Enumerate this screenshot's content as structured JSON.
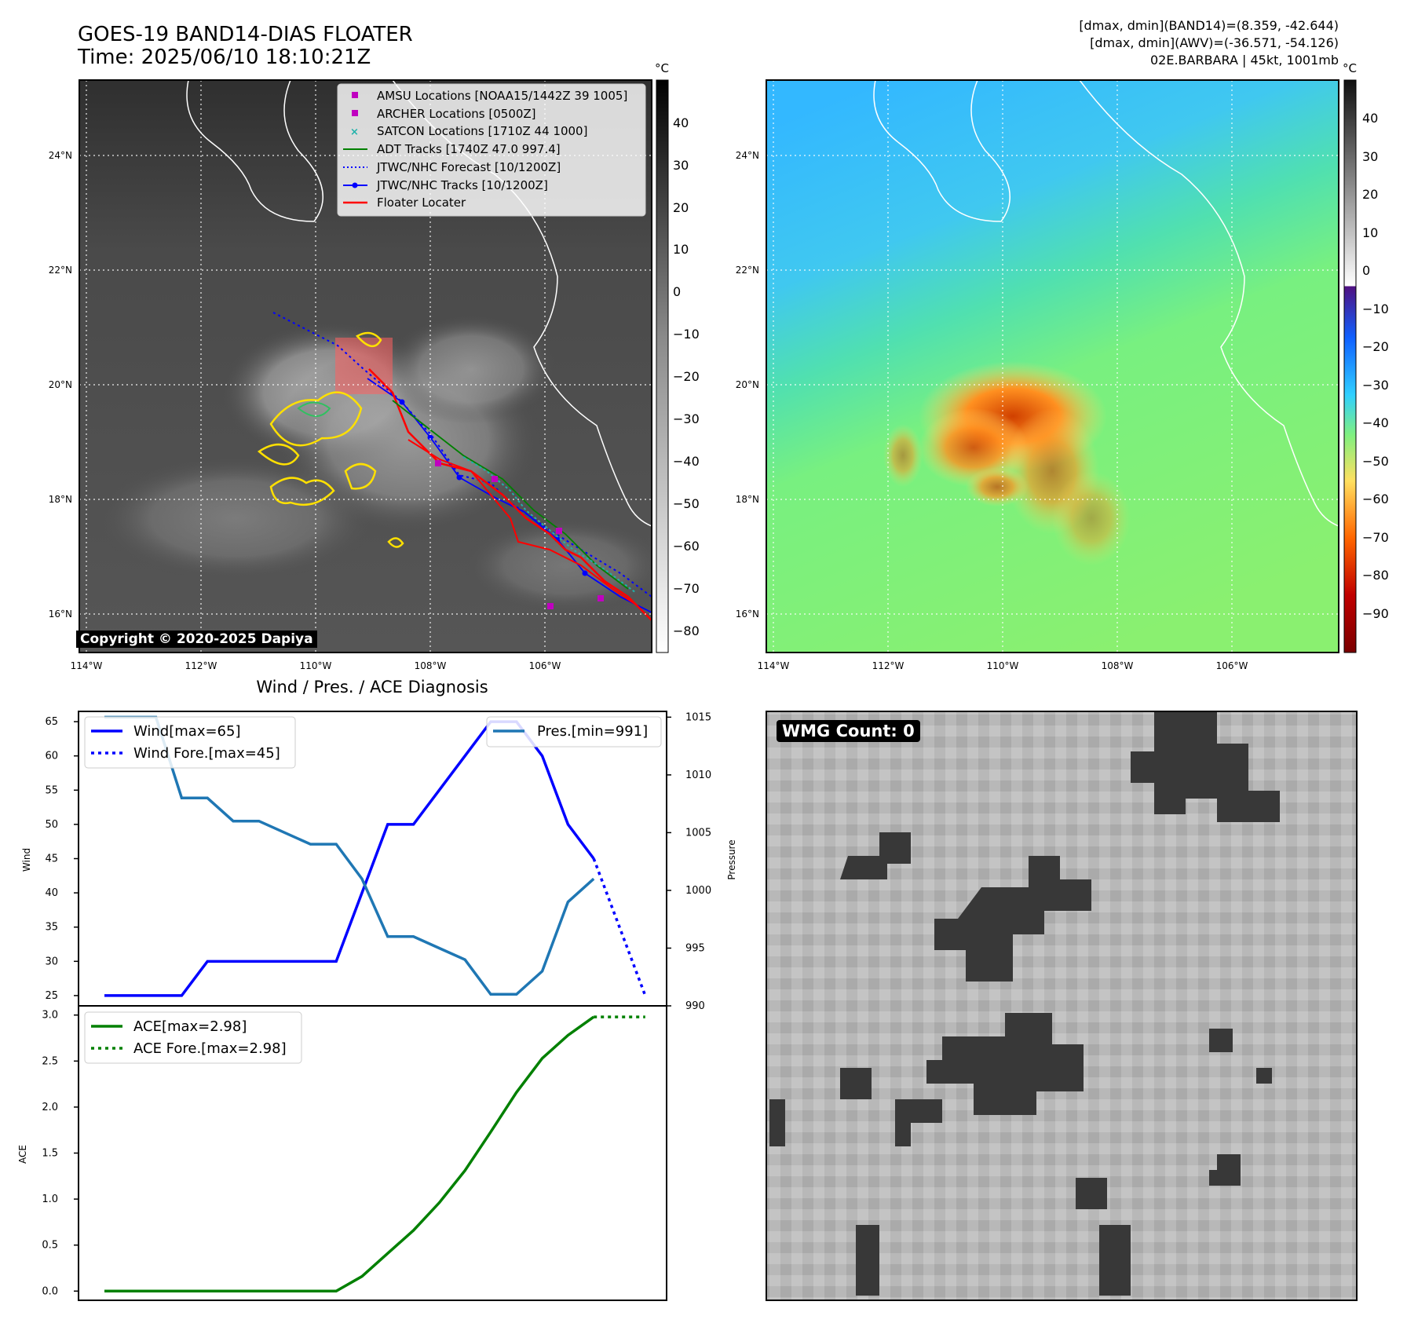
{
  "header": {
    "title_line1": "GOES-19 BAND14-DIAS FLOATER",
    "title_line2": "Time: 2025/06/10 18:10:21Z",
    "info_line1": "[dmax, dmin](BAND14)=(8.359, -42.644)",
    "info_line2": "[dmax, dmin](AWV)=(-36.571, -54.126)",
    "info_line3": "02E.BARBARA | 45kt, 1001mb"
  },
  "map": {
    "lat_labels": [
      "24°N",
      "22°N",
      "20°N",
      "18°N",
      "16°N"
    ],
    "lon_labels": [
      "114°W",
      "112°W",
      "110°W",
      "108°W",
      "106°W"
    ],
    "copyright": "Copyright © 2020-2025 Dapiya",
    "legend": [
      {
        "label": "AMSU Locations [NOAA15/1442Z 39 1005]",
        "marker": "square",
        "color": "#c000c0"
      },
      {
        "label": "ARCHER Locations [0500Z]",
        "marker": "square",
        "color": "#c000c0"
      },
      {
        "label": "SATCON Locations [1710Z 44 1000]",
        "marker": "x",
        "color": "#20b2aa"
      },
      {
        "label": "ADT Tracks [1740Z 47.0 997.4]",
        "marker": "line",
        "color": "#008000"
      },
      {
        "label": "JTWC/NHC Forecast [10/1200Z]",
        "marker": "dotted",
        "color": "#0000ff"
      },
      {
        "label": "JTWC/NHC Tracks [10/1200Z]",
        "marker": "line-dot",
        "color": "#0000ff"
      },
      {
        "label": "Floater Locater",
        "marker": "line",
        "color": "#ff0000"
      }
    ],
    "colorbar_left": {
      "unit": "°C",
      "ticks": [
        "40",
        "30",
        "20",
        "10",
        "0",
        "−10",
        "−20",
        "−30",
        "−40",
        "−50",
        "−60",
        "−70",
        "−80"
      ]
    },
    "colorbar_right": {
      "unit": "°C",
      "ticks": [
        "40",
        "30",
        "20",
        "10",
        "0",
        "−10",
        "−20",
        "−30",
        "−40",
        "−50",
        "−60",
        "−70",
        "−80",
        "−90"
      ]
    }
  },
  "diag": {
    "title": "Wind / Pres. / ACE Diagnosis",
    "wmg_label": "WMG Count: 0"
  },
  "chart_data": [
    {
      "type": "line",
      "ylabel": "Wind",
      "ylabel_right": "Pressure",
      "ylim": [
        23.5,
        66.5
      ],
      "ylim_right": [
        990,
        1015.5
      ],
      "yticks": [
        25,
        30,
        35,
        40,
        45,
        50,
        55,
        60,
        65
      ],
      "yticks_right": [
        990,
        995,
        1000,
        1005,
        1010,
        1015
      ],
      "x": [
        0,
        1,
        2,
        3,
        4,
        5,
        6,
        7,
        8,
        9,
        10,
        11,
        12,
        13,
        14,
        15,
        16,
        17,
        18,
        19,
        20
      ],
      "series": [
        {
          "name": "Wind[max=65]",
          "color": "#0000ff",
          "style": "solid",
          "axis": "left",
          "x": [
            0,
            1,
            2,
            3,
            4,
            5,
            6,
            7,
            8,
            9,
            10,
            11,
            12,
            13,
            14,
            15,
            16,
            17,
            18,
            19
          ],
          "values": [
            25,
            25,
            25,
            25,
            30,
            30,
            30,
            30,
            30,
            30,
            40,
            50,
            50,
            55,
            60,
            65,
            65,
            60,
            50,
            45
          ]
        },
        {
          "name": "Wind Fore.[max=45]",
          "color": "#0000ff",
          "style": "dotted",
          "axis": "left",
          "x": [
            19,
            20,
            21
          ],
          "values": [
            45,
            35,
            25
          ]
        },
        {
          "name": "Pres.[min=991]",
          "color": "#1f77b4",
          "style": "solid",
          "axis": "right",
          "x": [
            0,
            1,
            2,
            3,
            4,
            5,
            6,
            7,
            8,
            9,
            10,
            11,
            12,
            13,
            14,
            15,
            16,
            17,
            18,
            19
          ],
          "values": [
            1015,
            1015,
            1015,
            1008,
            1008,
            1006,
            1006,
            1005,
            1004,
            1004,
            1001,
            996,
            996,
            995,
            994,
            991,
            991,
            993,
            999,
            1001
          ]
        }
      ]
    },
    {
      "type": "line",
      "ylabel": "ACE",
      "ylim": [
        -0.1,
        3.1
      ],
      "yticks": [
        0.0,
        0.5,
        1.0,
        1.5,
        2.0,
        2.5,
        3.0
      ],
      "series": [
        {
          "name": "ACE[max=2.98]",
          "color": "#008000",
          "style": "solid",
          "x": [
            0,
            1,
            2,
            3,
            4,
            5,
            6,
            7,
            8,
            9,
            10,
            11,
            12,
            13,
            14,
            15,
            16,
            17,
            18,
            19
          ],
          "values": [
            0,
            0,
            0,
            0,
            0,
            0,
            0,
            0,
            0,
            0,
            0.16,
            0.41,
            0.66,
            0.96,
            1.31,
            1.73,
            2.16,
            2.53,
            2.78,
            2.98
          ]
        },
        {
          "name": "ACE Fore.[max=2.98]",
          "color": "#008000",
          "style": "dotted",
          "x": [
            19,
            20,
            21
          ],
          "values": [
            2.98,
            2.98,
            2.98
          ]
        }
      ]
    }
  ]
}
